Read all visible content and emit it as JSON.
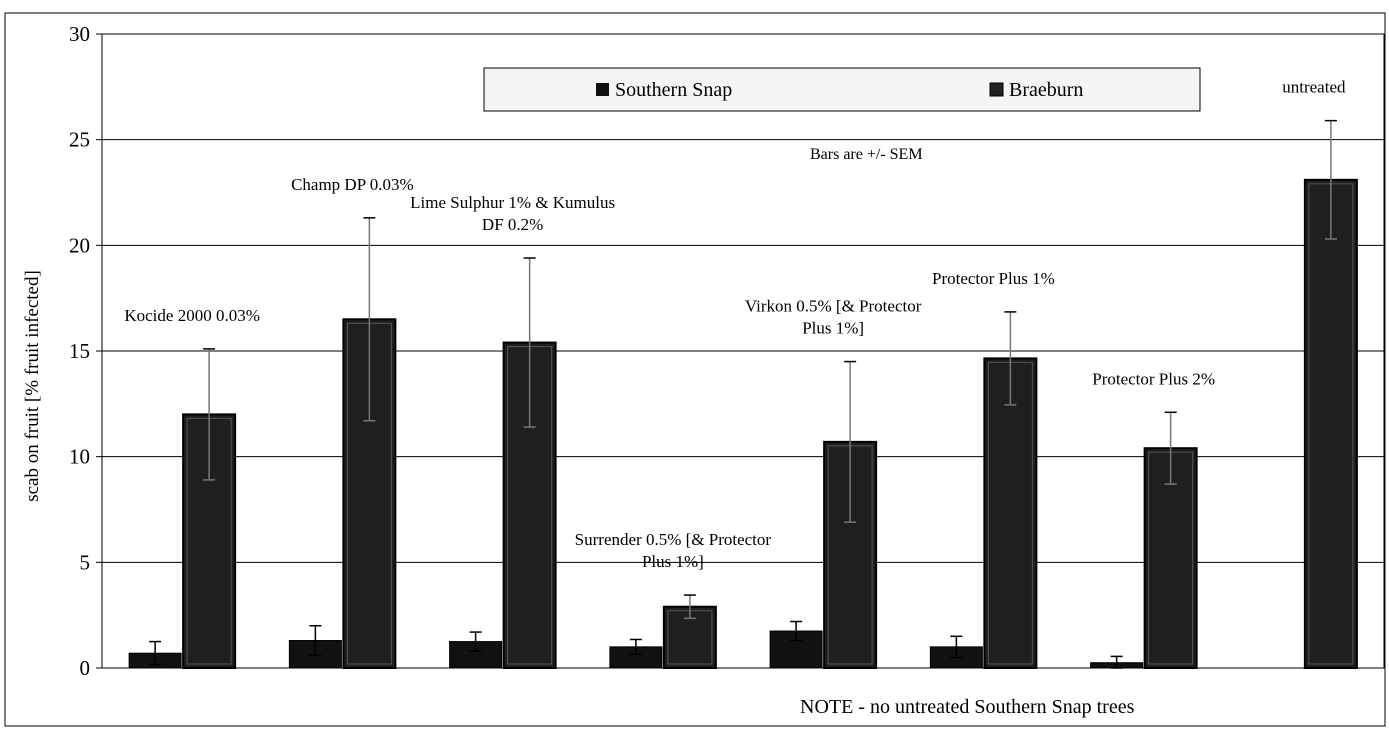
{
  "chart_data": {
    "type": "bar",
    "ylabel": "scab on fruit [% fruit infected]",
    "xlabel": "",
    "ylim": [
      0,
      30
    ],
    "yticks": [
      "0",
      "5",
      "10",
      "15",
      "20",
      "25",
      "30"
    ],
    "grid": true,
    "legend_position": "top-center",
    "series": [
      {
        "name": "Southern Snap",
        "color": "#111111",
        "values": [
          0.7,
          1.3,
          1.25,
          1.0,
          1.75,
          1.0,
          0.25,
          null
        ],
        "errors": [
          0.55,
          0.7,
          0.45,
          0.35,
          0.45,
          0.5,
          0.3,
          null
        ]
      },
      {
        "name": "Braeburn",
        "color": "#1f1f1f",
        "values": [
          12.0,
          16.5,
          15.4,
          2.9,
          10.7,
          14.65,
          10.4,
          23.1
        ],
        "errors": [
          3.1,
          4.8,
          4.0,
          0.55,
          3.8,
          2.2,
          1.7,
          2.8
        ]
      }
    ],
    "treatment_labels": [
      {
        "lines": [
          "Kocide 2000 0.03%"
        ]
      },
      {
        "lines": [
          "Champ DP 0.03%"
        ]
      },
      {
        "lines": [
          "Lime Sulphur 1% & Kumulus",
          "DF 0.2%"
        ]
      },
      {
        "lines": [
          "Surrender 0.5% [& Protector",
          "Plus 1%]"
        ]
      },
      {
        "lines": [
          "Virkon 0.5% [& Protector",
          "Plus 1%]"
        ]
      },
      {
        "lines": [
          "Protector Plus 1%"
        ]
      },
      {
        "lines": [
          "Protector Plus 2%"
        ]
      },
      {
        "lines": [
          "untreated"
        ]
      }
    ],
    "annotations": {
      "error_note": "Bars are +/- SEM",
      "bottom_note": "NOTE - no untreated Southern Snap trees"
    }
  }
}
